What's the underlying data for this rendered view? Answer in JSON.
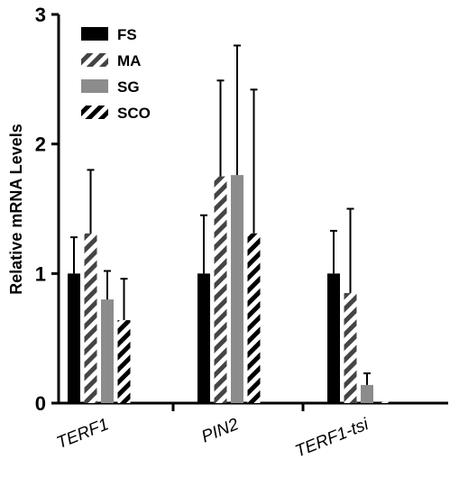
{
  "chart_data": {
    "type": "bar",
    "ylabel": "Relative mRNA Levels",
    "xlabel": "",
    "ylim": [
      0,
      3
    ],
    "yticks": [
      "0",
      "1",
      "2",
      "3"
    ],
    "categories": [
      "TERF1",
      "PIN2",
      "TERF1-tsi"
    ],
    "categories_italic": true,
    "legend_position": "top-left",
    "series": [
      {
        "name": "FS",
        "values": [
          1.0,
          1.0,
          1.0
        ],
        "errors": [
          0.28,
          0.45,
          0.33
        ],
        "fill": "solid",
        "color": "#000000"
      },
      {
        "name": "MA",
        "values": [
          1.31,
          1.75,
          0.85
        ],
        "errors": [
          0.49,
          0.74,
          0.65
        ],
        "fill": "hatch",
        "color": "#444444"
      },
      {
        "name": "SG",
        "values": [
          0.8,
          1.76,
          0.14
        ],
        "errors": [
          0.22,
          1.0,
          0.09
        ],
        "fill": "solid",
        "color": "#8c8c8c"
      },
      {
        "name": "SCO",
        "values": [
          0.64,
          1.31,
          0.01
        ],
        "errors": [
          0.32,
          1.11,
          0.0
        ],
        "fill": "hatch",
        "color": "#000000"
      }
    ]
  }
}
